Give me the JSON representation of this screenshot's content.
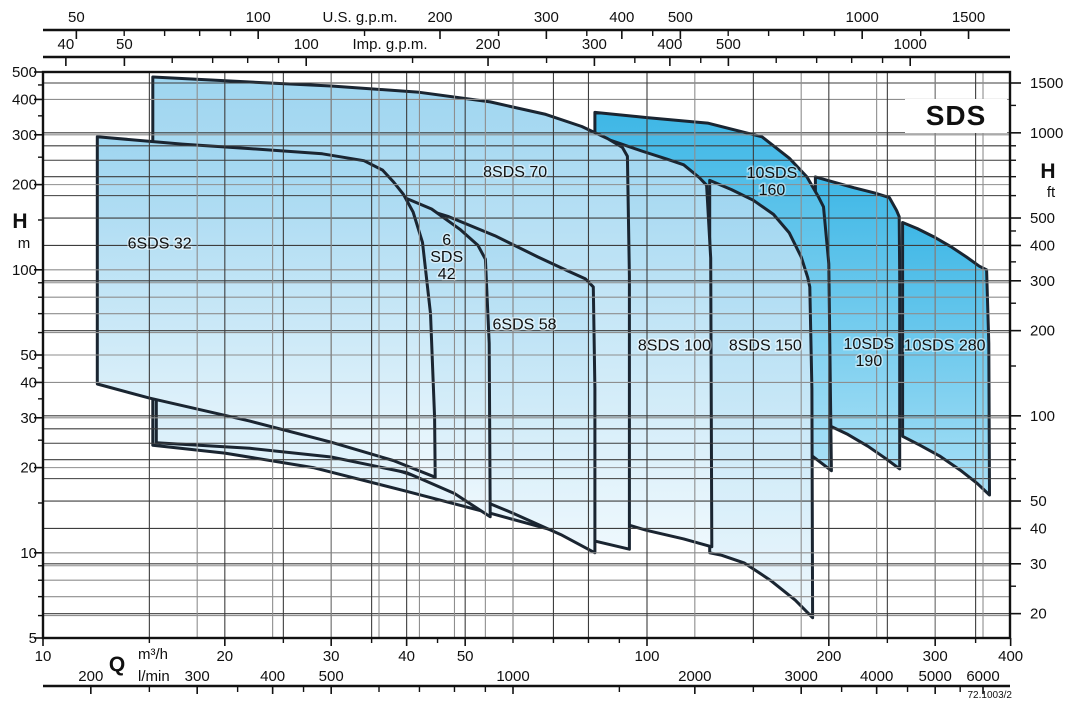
{
  "title": "SDS",
  "drawing_number": "72.1003/2",
  "axes": {
    "top_us": {
      "title": "U.S. g.p.m.",
      "major": [
        50,
        100,
        200,
        300,
        400,
        500,
        1000,
        1500
      ],
      "minor": [
        60,
        70,
        80,
        90,
        150,
        250,
        350,
        450,
        600,
        700,
        800,
        900,
        1250
      ]
    },
    "top_imp": {
      "title": "Imp. g.p.m.",
      "major": [
        40,
        50,
        100,
        200,
        300,
        400,
        500,
        1000
      ],
      "minor": [
        60,
        70,
        80,
        90,
        150,
        250,
        350,
        450,
        600,
        700,
        800,
        900
      ]
    },
    "bottom_m3h": {
      "q_symbol": "Q",
      "title": "m³/h",
      "major": [
        10,
        20,
        30,
        40,
        50,
        100,
        200,
        300,
        400
      ],
      "minor": [
        15,
        25,
        35,
        45,
        60,
        70,
        80,
        90,
        150,
        250,
        350
      ]
    },
    "bottom_lmin": {
      "title": "l/min",
      "major": [
        200,
        300,
        400,
        500,
        1000,
        2000,
        3000,
        4000,
        5000,
        6000
      ],
      "minor": [
        250,
        350,
        450,
        600,
        700,
        800,
        900,
        1500,
        2500,
        3500,
        4500,
        5500
      ]
    },
    "left_m": {
      "title": "H",
      "unit": "m",
      "major": [
        500,
        400,
        300,
        200,
        100,
        50,
        40,
        30,
        20,
        10,
        5
      ],
      "minor": [
        6,
        7,
        8,
        9,
        15,
        25,
        35,
        45,
        60,
        70,
        80,
        90,
        150,
        250,
        350,
        450
      ]
    },
    "right_ft": {
      "title": "H",
      "unit": "ft",
      "major": [
        1500,
        1000,
        500,
        400,
        300,
        200,
        100,
        50,
        40,
        30,
        20
      ],
      "minor": [
        25,
        60,
        70,
        80,
        90,
        150,
        250,
        350,
        450,
        600,
        700,
        800,
        900,
        1250
      ]
    }
  },
  "grid": {
    "h_m_gray": [
      6,
      7,
      8,
      9,
      10,
      20,
      30,
      40,
      50,
      60,
      70,
      80,
      90,
      100,
      200,
      300,
      400
    ],
    "h_ft_dark": [
      20,
      30,
      40,
      50,
      60,
      70,
      80,
      90,
      100,
      200,
      300,
      400,
      500,
      600,
      700,
      800,
      900,
      1000,
      1500
    ],
    "v_m3h_dark": [
      15,
      20,
      25,
      30,
      35,
      40,
      50,
      60,
      70,
      80,
      100,
      150,
      200,
      250,
      300,
      350
    ],
    "v_lmin_gray": [
      300,
      400,
      500,
      600,
      700,
      800,
      900,
      1000,
      2000,
      3000,
      4000,
      5000,
      6000
    ]
  },
  "colors": {
    "light_top": "#9ed5f0",
    "light_bottom": "#eef8fd",
    "dark_top": "#3eb7e6",
    "dark_bottom": "#a9e0f6",
    "outline": "#1a2531",
    "grid_gray": "#8e8e8e",
    "grid_dark": "#3d3d3d",
    "axis": "#111111"
  },
  "chart_data": {
    "type": "area",
    "description": "Composite performance-range chart for the SDS borehole pump series: overlapping operating envelopes (flow Q vs head H) on log-log axes.",
    "x_axis": {
      "name": "Q",
      "units": [
        "m³/h",
        "l/min",
        "U.S. g.p.m.",
        "Imp. g.p.m."
      ],
      "scale": "log",
      "range_m3h": [
        10,
        400
      ]
    },
    "y_axis": {
      "name": "H",
      "units": [
        "m",
        "ft"
      ],
      "scale": "log",
      "range_m": [
        5,
        500
      ]
    },
    "legend": "none",
    "grid": "on",
    "series": [
      {
        "name": "10SDS 280",
        "shade": "dark",
        "label_lines": [
          "10SDS 280"
        ],
        "label_q": 311,
        "label_h": 54,
        "points_q_h": [
          [
            265,
            147
          ],
          [
            280,
            140
          ],
          [
            298,
            131
          ],
          [
            318,
            121
          ],
          [
            338,
            111
          ],
          [
            355,
            103
          ],
          [
            365,
            100
          ],
          [
            368,
            55
          ],
          [
            369,
            16
          ],
          [
            352,
            17.6
          ],
          [
            330,
            19.6
          ],
          [
            305,
            22
          ],
          [
            283,
            24
          ],
          [
            265,
            25.8
          ]
        ]
      },
      {
        "name": "10SDS 190",
        "shade": "dark",
        "label_lines": [
          "10SDS",
          "190"
        ],
        "label_q": 233,
        "label_h": 51,
        "points_q_h": [
          [
            190,
            213
          ],
          [
            204,
            204
          ],
          [
            220,
            195
          ],
          [
            238,
            187
          ],
          [
            252,
            180
          ],
          [
            259,
            162
          ],
          [
            261.5,
            154
          ],
          [
            262,
            95
          ],
          [
            262,
            19.8
          ],
          [
            248,
            21.6
          ],
          [
            232,
            23.8
          ],
          [
            215,
            26.2
          ],
          [
            200,
            28.2
          ],
          [
            190,
            29.5
          ]
        ]
      },
      {
        "name": "10SDS 160",
        "shade": "dark",
        "label_lines": [
          "10SDS",
          "160"
        ],
        "label_q": 161,
        "label_h": 205,
        "points_q_h": [
          [
            82,
            360
          ],
          [
            100,
            345
          ],
          [
            126,
            330
          ],
          [
            155,
            295
          ],
          [
            172,
            248
          ],
          [
            184,
            213
          ],
          [
            192,
            182
          ],
          [
            196,
            167
          ],
          [
            200,
            105
          ],
          [
            202,
            19.5
          ],
          [
            185,
            22.5
          ],
          [
            165,
            26.5
          ],
          [
            140,
            31.5
          ],
          [
            115,
            38
          ],
          [
            95,
            44
          ],
          [
            82,
            48
          ]
        ]
      },
      {
        "name": "8SDS 150",
        "shade": "light",
        "label_lines": [
          "8SDS 150"
        ],
        "label_q": 157,
        "label_h": 54,
        "points_q_h": [
          [
            127,
            207
          ],
          [
            138,
            192
          ],
          [
            150,
            176
          ],
          [
            162,
            157
          ],
          [
            172,
            135
          ],
          [
            180,
            111
          ],
          [
            184.5,
            94
          ],
          [
            186,
            87
          ],
          [
            187.5,
            38
          ],
          [
            188,
            5.9
          ],
          [
            176,
            6.8
          ],
          [
            160,
            8
          ],
          [
            145,
            9.2
          ],
          [
            133,
            9.8
          ],
          [
            127,
            10
          ]
        ]
      },
      {
        "name": "8SDS 100",
        "shade": "light",
        "label_lines": [
          "8SDS 100"
        ],
        "label_q": 111,
        "label_h": 54,
        "points_q_h": [
          [
            82.5,
            298
          ],
          [
            90,
            280
          ],
          [
            98,
            263
          ],
          [
            108,
            246
          ],
          [
            115,
            235
          ],
          [
            122,
            212
          ],
          [
            125.5,
            199
          ],
          [
            127.5,
            110
          ],
          [
            128,
            10.5
          ],
          [
            115,
            11.2
          ],
          [
            100,
            12
          ],
          [
            88,
            13
          ],
          [
            82.5,
            13.5
          ]
        ]
      },
      {
        "name": "8SDS 70",
        "shade": "light",
        "label_lines": [
          "8SDS 70"
        ],
        "label_q": 60.5,
        "label_h": 222,
        "points_q_h": [
          [
            15.2,
            480
          ],
          [
            22,
            461
          ],
          [
            30,
            446
          ],
          [
            42,
            424
          ],
          [
            55,
            392
          ],
          [
            68,
            354
          ],
          [
            78,
            321
          ],
          [
            86,
            291
          ],
          [
            91,
            271
          ],
          [
            92.8,
            252
          ],
          [
            93.5,
            95
          ],
          [
            93.5,
            10.3
          ],
          [
            82,
            11
          ],
          [
            70,
            12
          ],
          [
            55,
            13.8
          ],
          [
            40,
            16.5
          ],
          [
            28,
            20
          ],
          [
            20,
            22.5
          ],
          [
            15.2,
            24
          ]
        ]
      },
      {
        "name": "6SDS 58",
        "shade": "light",
        "label_lines": [
          "6SDS 58"
        ],
        "label_q": 62.7,
        "label_h": 64,
        "points_q_h": [
          [
            18.6,
            215
          ],
          [
            26,
            201
          ],
          [
            34,
            187
          ],
          [
            42,
            166
          ],
          [
            47,
            154
          ],
          [
            56,
            132
          ],
          [
            66,
            111
          ],
          [
            74,
            99
          ],
          [
            79,
            93
          ],
          [
            81.5,
            87
          ],
          [
            82,
            38
          ],
          [
            82,
            10
          ],
          [
            72,
            11.6
          ],
          [
            60,
            13.8
          ],
          [
            48,
            16.8
          ],
          [
            38,
            19.8
          ],
          [
            28,
            23.4
          ],
          [
            18.6,
            26.6
          ]
        ]
      },
      {
        "name": "6SDS 42",
        "shade": "light",
        "label_lines": [
          "6",
          "SDS",
          "42"
        ],
        "label_q": 46.6,
        "label_h": 111,
        "points_q_h": [
          [
            15.4,
            228
          ],
          [
            22,
            212
          ],
          [
            30,
            199
          ],
          [
            38,
            187
          ],
          [
            44,
            164
          ],
          [
            49,
            139
          ],
          [
            52.5,
            122
          ],
          [
            54,
            109
          ],
          [
            54.8,
            55
          ],
          [
            55,
            13.4
          ],
          [
            48,
            16.2
          ],
          [
            40,
            19.2
          ],
          [
            30,
            21.8
          ],
          [
            22,
            23.4
          ],
          [
            15.4,
            24.5
          ]
        ]
      },
      {
        "name": "6SDS 32",
        "shade": "light",
        "label_lines": [
          "6SDS 32"
        ],
        "label_q": 15.6,
        "label_h": 124,
        "points_q_h": [
          [
            12.3,
            295
          ],
          [
            17,
            278
          ],
          [
            22,
            268
          ],
          [
            29,
            257
          ],
          [
            34,
            243
          ],
          [
            36.5,
            225
          ],
          [
            38,
            205
          ],
          [
            39.5,
            185
          ],
          [
            41,
            160
          ],
          [
            42.5,
            125
          ],
          [
            43.8,
            70
          ],
          [
            44.5,
            30
          ],
          [
            44.6,
            18.5
          ],
          [
            38,
            21.2
          ],
          [
            30,
            24.6
          ],
          [
            22,
            29.2
          ],
          [
            15,
            35.2
          ],
          [
            12.3,
            39.5
          ]
        ]
      }
    ]
  }
}
